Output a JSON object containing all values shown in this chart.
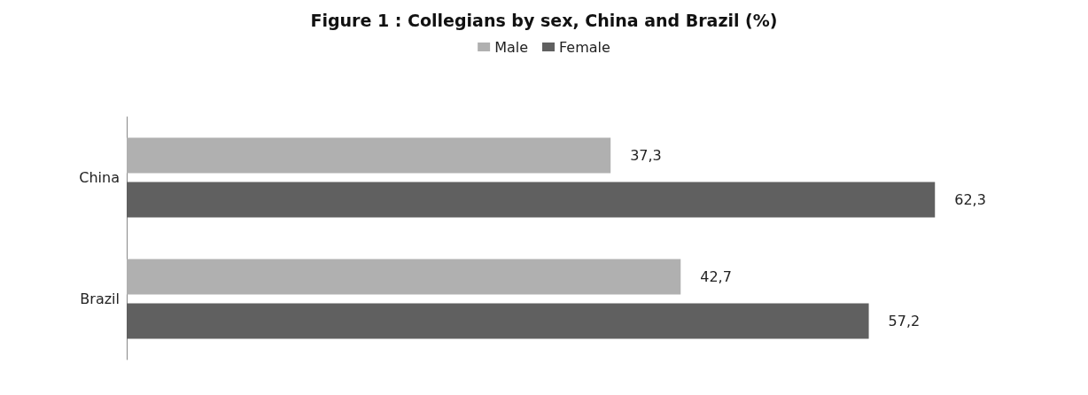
{
  "chart_data": {
    "type": "bar",
    "orientation": "horizontal",
    "title": "Figure 1 : Collegians by sex, China and Brazil (%)",
    "categories": [
      "China",
      "Brazil"
    ],
    "series": [
      {
        "name": "Male",
        "color": "#b0b0b0",
        "values": [
          37.3,
          42.7
        ],
        "value_labels": [
          "37,3",
          "42,7"
        ]
      },
      {
        "name": "Female",
        "color": "#606060",
        "values": [
          62.3,
          57.2
        ],
        "value_labels": [
          "62,3",
          "57,2"
        ]
      }
    ],
    "legend": "top",
    "grid": false
  }
}
